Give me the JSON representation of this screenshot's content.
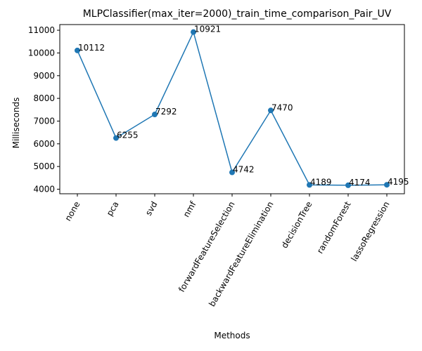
{
  "chart_data": {
    "type": "line",
    "title": "MLPClassifier(max_iter=2000)_train_time_comparison_Pair_UV",
    "xlabel": "Methods",
    "ylabel": "Milliseconds",
    "categories": [
      "none",
      "pca",
      "svd",
      "nmf",
      "forwardFeatureSelection",
      "backwardFeatureElimination",
      "decisionTree",
      "randomForest",
      "lassoRegression"
    ],
    "values": [
      10112,
      6255,
      7292,
      10921,
      4742,
      7470,
      4189,
      4174,
      4195
    ],
    "data_labels": [
      "10112",
      "6255",
      "7292",
      "10921",
      "4742",
      "7470",
      "4189",
      "4174",
      "4195"
    ],
    "yticks": [
      4000,
      5000,
      6000,
      7000,
      8000,
      9000,
      10000,
      11000
    ],
    "ylim": [
      3800,
      11250
    ],
    "grid": false,
    "legend": "none",
    "color": "#1f77b4"
  }
}
